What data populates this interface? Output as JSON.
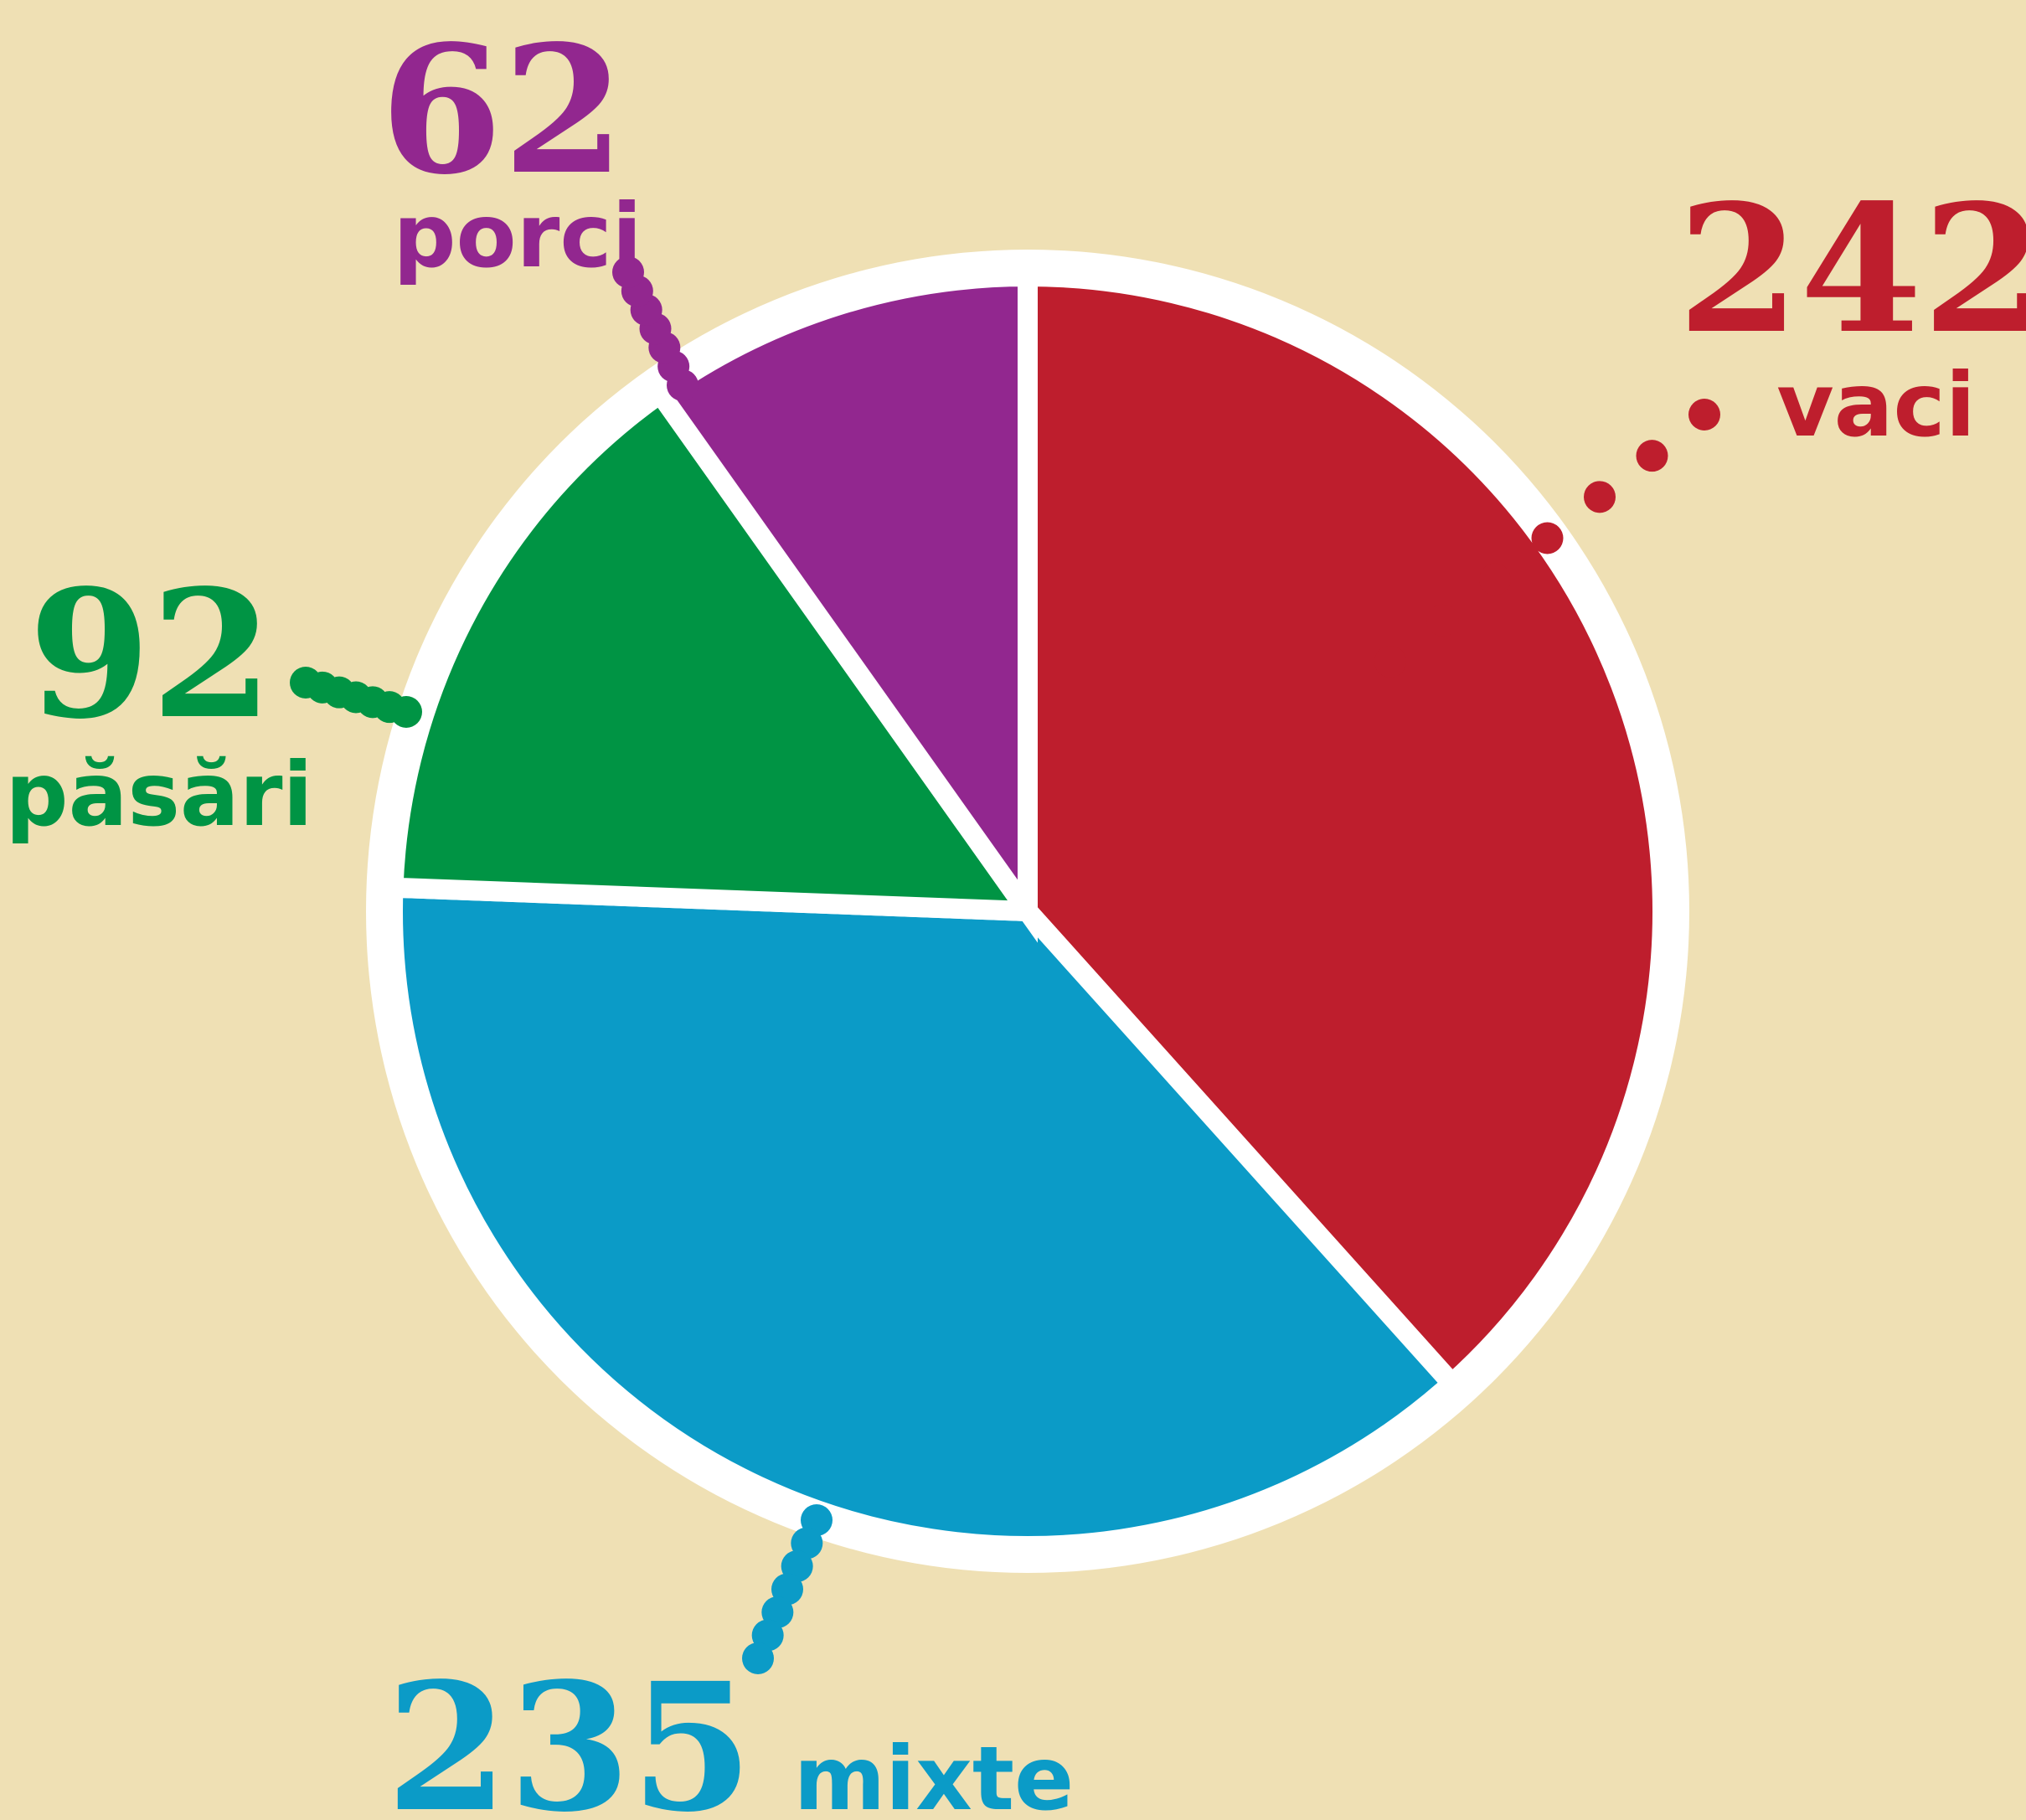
{
  "chart_data": {
    "type": "pie",
    "categories": [
      "vaci",
      "mixte",
      "păsări",
      "porci"
    ],
    "values": [
      242,
      235,
      92,
      62
    ],
    "colors": [
      "#be1e2d",
      "#0b9bc7",
      "#009444",
      "#92278f"
    ]
  }
}
